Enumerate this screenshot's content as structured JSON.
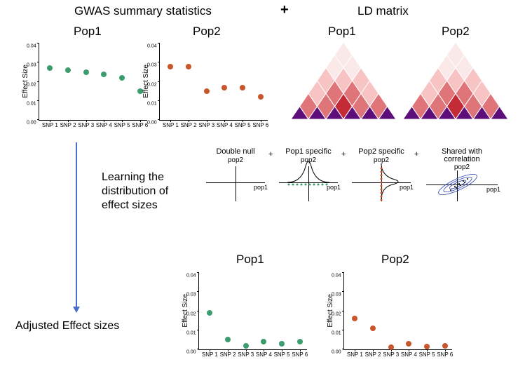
{
  "headings": {
    "gwas": "GWAS summary statistics",
    "plus": "+",
    "ld": "LD matrix",
    "pop1": "Pop1",
    "pop2": "Pop2"
  },
  "narrative": {
    "learn_line1": "Learning the",
    "learn_line2": "distribution of",
    "learn_line3": "effect sizes",
    "adjusted": "Adjusted Effect sizes"
  },
  "colors": {
    "pop1_dot": "#3b9d6d",
    "pop2_dot": "#c9552d",
    "arrow": "#4a6fc9",
    "ld_levels": [
      "#fbe8e8",
      "#f7c3c3",
      "#df7579",
      "#c32c37",
      "#9a1923",
      "#5d0e7a"
    ],
    "background": "#ffffff"
  },
  "axis": {
    "ylabel": "Effect Size",
    "yticks": [
      "0.00",
      "0.01",
      "0.02",
      "0.03",
      "0.04"
    ],
    "ytick_vals": [
      0.0,
      0.01,
      0.02,
      0.03,
      0.04
    ],
    "xticks": [
      "SNP 1",
      "SNP 2",
      "SNP 3",
      "SNP 4",
      "SNP 5",
      "SNP 6"
    ],
    "ylim": [
      0,
      0.04
    ],
    "tick_fontsize": 7,
    "label_fontsize": 10
  },
  "plots": {
    "top_pop1": {
      "color": "#3b9d6d",
      "values": [
        0.027,
        0.026,
        0.025,
        0.024,
        0.022,
        0.015
      ]
    },
    "top_pop2": {
      "color": "#c9552d",
      "values": [
        0.028,
        0.028,
        0.015,
        0.017,
        0.017,
        0.012
      ]
    },
    "bot_pop1": {
      "color": "#3b9d6d",
      "values": [
        0.019,
        0.005,
        0.002,
        0.004,
        0.003,
        0.004
      ]
    },
    "bot_pop2": {
      "color": "#c9552d",
      "values": [
        0.016,
        0.011,
        0.001,
        0.003,
        0.0015,
        0.002
      ]
    }
  },
  "dist": {
    "titles": {
      "dnull": "Double null",
      "p1": "Pop1 specific",
      "p2": "Pop2 specific",
      "sh_l1": "Shared with",
      "sh_l2": "correlation"
    },
    "xlab": "pop1",
    "ylab": "pop2",
    "plus": "+",
    "curve_color": "#000000",
    "p1_dots_color": "#3b9d6d",
    "p2_dots_color": "#c9552d",
    "ellipse_color": "#2a3fb1"
  },
  "ld": {
    "rows": 6,
    "palette": [
      "#fbe8e8",
      "#f7c3c3",
      "#df7579",
      "#c32c37",
      "#9a1923"
    ],
    "base_color": "#5d0e7a"
  }
}
